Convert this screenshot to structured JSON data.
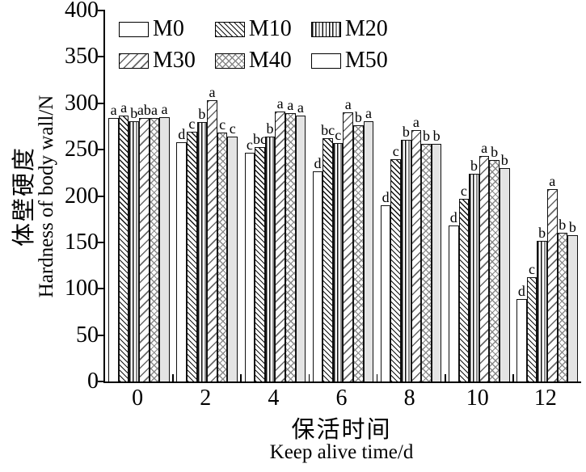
{
  "figure": {
    "y_axis": {
      "label_zh": "体壁硬度",
      "label_en": "Hardness of body wall/N",
      "ticks": [
        0,
        50,
        100,
        150,
        200,
        250,
        300,
        350,
        400
      ]
    },
    "x_axis": {
      "label_zh": "保活时间",
      "label_en": "Keep alive time/d",
      "ticks": [
        "0",
        "2",
        "4",
        "6",
        "8",
        "10",
        "12"
      ]
    }
  },
  "colors": {
    "background": "#ffffff",
    "bar_border": "#111111",
    "axis": "#000000",
    "m50_fill": "#e4e4e4",
    "hatch_black": "#111111",
    "hatch_gray": "#888888"
  },
  "chart_data": {
    "type": "bar",
    "title": "",
    "categories": [
      0,
      2,
      4,
      6,
      8,
      10,
      12
    ],
    "xlabel_zh": "保活时间",
    "xlabel_en": "Keep alive time/d",
    "ylabel_zh": "体壁硬度",
    "ylabel_en": "Hardness of body wall/N",
    "ylim": [
      0,
      400
    ],
    "ytick_step": 50,
    "grid": false,
    "legend_position": "upper-left-inside",
    "legend_order": [
      "M0",
      "M10",
      "M20",
      "M30",
      "M40",
      "M50"
    ],
    "series": [
      {
        "name": "M0",
        "pattern": "plain-white",
        "values": [
          284,
          258,
          247,
          227,
          190,
          168,
          89
        ],
        "sig_letters": [
          "a",
          "d",
          "c",
          "d",
          "d",
          "d",
          "d"
        ]
      },
      {
        "name": "M10",
        "pattern": "backslash-hatch",
        "values": [
          287,
          269,
          253,
          262,
          240,
          197,
          112
        ],
        "sig_letters": [
          "a",
          "c",
          "bc",
          "bc",
          "c",
          "c",
          "c"
        ]
      },
      {
        "name": "M20",
        "pattern": "vertical-line-hatch",
        "values": [
          281,
          280,
          264,
          257,
          261,
          224,
          152
        ],
        "sig_letters": [
          "b",
          "b",
          "b",
          "c",
          "b",
          "b",
          "b"
        ]
      },
      {
        "name": "M30",
        "pattern": "slash-hatch",
        "values": [
          284,
          303,
          291,
          290,
          271,
          243,
          207
        ],
        "sig_letters": [
          "ab",
          "a",
          "a",
          "a",
          "a",
          "a",
          "a"
        ]
      },
      {
        "name": "M40",
        "pattern": "cross-hatch",
        "values": [
          284,
          268,
          289,
          276,
          256,
          239,
          160
        ],
        "sig_letters": [
          "a",
          "c",
          "a",
          "b",
          "b",
          "b",
          "b"
        ]
      },
      {
        "name": "M50",
        "pattern": "solid-light-gray",
        "values": [
          285,
          264,
          287,
          281,
          256,
          230,
          158
        ],
        "sig_letters": [
          "a",
          "c",
          "a",
          "a",
          "b",
          "b",
          "b"
        ]
      }
    ]
  }
}
